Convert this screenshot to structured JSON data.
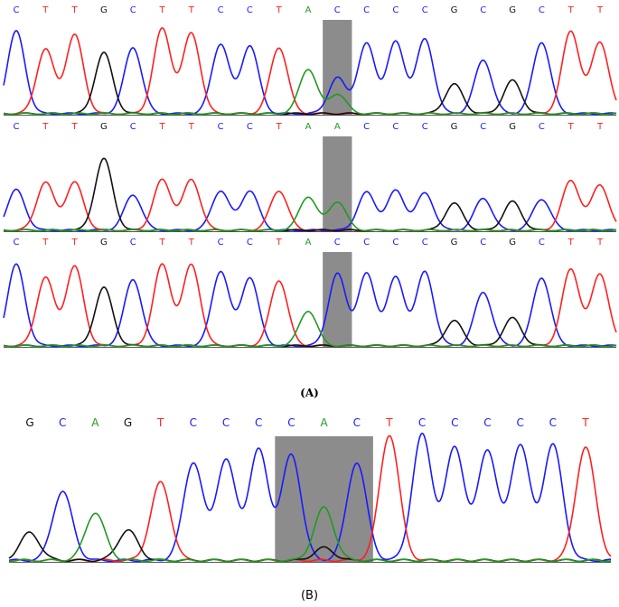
{
  "colors": {
    "A": "#1f9b1f",
    "C": "#1a1aff",
    "G": "#111111",
    "T": "#ff2020",
    "highlight": "#8c8c8c"
  },
  "panel_a": {
    "caption": "(A)",
    "tracks": [
      {
        "sequence": [
          "C",
          "T",
          "T",
          "G",
          "C",
          "T",
          "T",
          "C",
          "C",
          "T",
          "A",
          "C",
          "C",
          "C",
          "C",
          "G",
          "C",
          "G",
          "C",
          "T",
          "T"
        ],
        "peaks": [
          [
            {
              "b": "C",
              "h": 0.92
            }
          ],
          [
            {
              "b": "T",
              "h": 0.72
            }
          ],
          [
            {
              "b": "T",
              "h": 0.88
            }
          ],
          [
            {
              "b": "G",
              "h": 0.68
            }
          ],
          [
            {
              "b": "C",
              "h": 0.74
            }
          ],
          [
            {
              "b": "T",
              "h": 0.95
            }
          ],
          [
            {
              "b": "T",
              "h": 0.9
            }
          ],
          [
            {
              "b": "C",
              "h": 0.78
            }
          ],
          [
            {
              "b": "C",
              "h": 0.76
            }
          ],
          [
            {
              "b": "T",
              "h": 0.74
            }
          ],
          [
            {
              "b": "A",
              "h": 0.5
            }
          ],
          [
            {
              "b": "C",
              "h": 0.4
            },
            {
              "b": "A",
              "h": 0.22
            }
          ],
          [
            {
              "b": "C",
              "h": 0.78
            }
          ],
          [
            {
              "b": "C",
              "h": 0.8
            }
          ],
          [
            {
              "b": "C",
              "h": 0.83
            }
          ],
          [
            {
              "b": "G",
              "h": 0.33
            }
          ],
          [
            {
              "b": "C",
              "h": 0.6
            }
          ],
          [
            {
              "b": "G",
              "h": 0.37
            }
          ],
          [
            {
              "b": "C",
              "h": 0.8
            }
          ],
          [
            {
              "b": "T",
              "h": 0.92
            }
          ],
          [
            {
              "b": "T",
              "h": 0.8
            }
          ]
        ],
        "highlight_index": 11
      },
      {
        "sequence": [
          "C",
          "T",
          "T",
          "G",
          "C",
          "T",
          "T",
          "C",
          "C",
          "T",
          "A",
          "A",
          "C",
          "C",
          "C",
          "G",
          "C",
          "G",
          "C",
          "T",
          "T"
        ],
        "peaks": [
          [
            {
              "b": "C",
              "h": 0.48
            }
          ],
          [
            {
              "b": "T",
              "h": 0.57
            }
          ],
          [
            {
              "b": "T",
              "h": 0.57
            }
          ],
          [
            {
              "b": "G",
              "h": 0.85
            }
          ],
          [
            {
              "b": "C",
              "h": 0.42
            }
          ],
          [
            {
              "b": "T",
              "h": 0.6
            }
          ],
          [
            {
              "b": "T",
              "h": 0.6
            }
          ],
          [
            {
              "b": "C",
              "h": 0.47
            }
          ],
          [
            {
              "b": "C",
              "h": 0.47
            }
          ],
          [
            {
              "b": "T",
              "h": 0.47
            }
          ],
          [
            {
              "b": "A",
              "h": 0.4
            }
          ],
          [
            {
              "b": "A",
              "h": 0.34
            }
          ],
          [
            {
              "b": "C",
              "h": 0.45
            }
          ],
          [
            {
              "b": "C",
              "h": 0.47
            }
          ],
          [
            {
              "b": "C",
              "h": 0.44
            }
          ],
          [
            {
              "b": "G",
              "h": 0.32
            }
          ],
          [
            {
              "b": "C",
              "h": 0.38
            }
          ],
          [
            {
              "b": "G",
              "h": 0.34
            }
          ],
          [
            {
              "b": "C",
              "h": 0.37
            }
          ],
          [
            {
              "b": "T",
              "h": 0.59
            }
          ],
          [
            {
              "b": "T",
              "h": 0.54
            }
          ]
        ],
        "highlight_index": 11
      },
      {
        "sequence": [
          "C",
          "T",
          "T",
          "G",
          "C",
          "T",
          "T",
          "C",
          "C",
          "T",
          "A",
          "C",
          "C",
          "C",
          "C",
          "G",
          "C",
          "G",
          "C",
          "T",
          "T"
        ],
        "peaks": [
          [
            {
              "b": "C",
              "h": 0.88
            }
          ],
          [
            {
              "b": "T",
              "h": 0.74
            }
          ],
          [
            {
              "b": "T",
              "h": 0.86
            }
          ],
          [
            {
              "b": "G",
              "h": 0.63
            }
          ],
          [
            {
              "b": "C",
              "h": 0.72
            }
          ],
          [
            {
              "b": "T",
              "h": 0.88
            }
          ],
          [
            {
              "b": "T",
              "h": 0.88
            }
          ],
          [
            {
              "b": "C",
              "h": 0.81
            }
          ],
          [
            {
              "b": "C",
              "h": 0.74
            }
          ],
          [
            {
              "b": "T",
              "h": 0.71
            }
          ],
          [
            {
              "b": "A",
              "h": 0.38
            }
          ],
          [
            {
              "b": "C",
              "h": 0.78
            }
          ],
          [
            {
              "b": "C",
              "h": 0.78
            }
          ],
          [
            {
              "b": "C",
              "h": 0.74
            }
          ],
          [
            {
              "b": "C",
              "h": 0.8
            }
          ],
          [
            {
              "b": "G",
              "h": 0.27
            }
          ],
          [
            {
              "b": "C",
              "h": 0.58
            }
          ],
          [
            {
              "b": "G",
              "h": 0.3
            }
          ],
          [
            {
              "b": "C",
              "h": 0.74
            }
          ],
          [
            {
              "b": "T",
              "h": 0.83
            }
          ],
          [
            {
              "b": "T",
              "h": 0.78
            }
          ]
        ],
        "highlight_index": 11
      }
    ]
  },
  "panel_b": {
    "caption": "(B)",
    "sequence": [
      "G",
      "C",
      "A",
      "G",
      "T",
      "C",
      "C",
      "C",
      "C",
      "A",
      "C",
      "T",
      "C",
      "C",
      "C",
      "C",
      "C",
      "T"
    ],
    "peaks": [
      [
        {
          "b": "G",
          "h": 0.22
        }
      ],
      [
        {
          "b": "C",
          "h": 0.55
        }
      ],
      [
        {
          "b": "A",
          "h": 0.38
        }
      ],
      [
        {
          "b": "G",
          "h": 0.24
        }
      ],
      [
        {
          "b": "T",
          "h": 0.62
        }
      ],
      [
        {
          "b": "C",
          "h": 0.78
        }
      ],
      [
        {
          "b": "C",
          "h": 0.8
        }
      ],
      [
        {
          "b": "C",
          "h": 0.88
        }
      ],
      [
        {
          "b": "C",
          "h": 0.84
        }
      ],
      [
        {
          "b": "A",
          "h": 0.42
        },
        {
          "b": "G",
          "h": 0.1
        }
      ],
      [
        {
          "b": "C",
          "h": 0.78
        }
      ],
      [
        {
          "b": "T",
          "h": 1.0
        }
      ],
      [
        {
          "b": "C",
          "h": 1.0
        }
      ],
      [
        {
          "b": "C",
          "h": 0.9
        }
      ],
      [
        {
          "b": "C",
          "h": 0.88
        }
      ],
      [
        {
          "b": "C",
          "h": 0.92
        }
      ],
      [
        {
          "b": "C",
          "h": 0.92
        }
      ],
      [
        {
          "b": "T",
          "h": 0.9
        }
      ]
    ],
    "highlight_range": [
      8,
      10
    ]
  }
}
